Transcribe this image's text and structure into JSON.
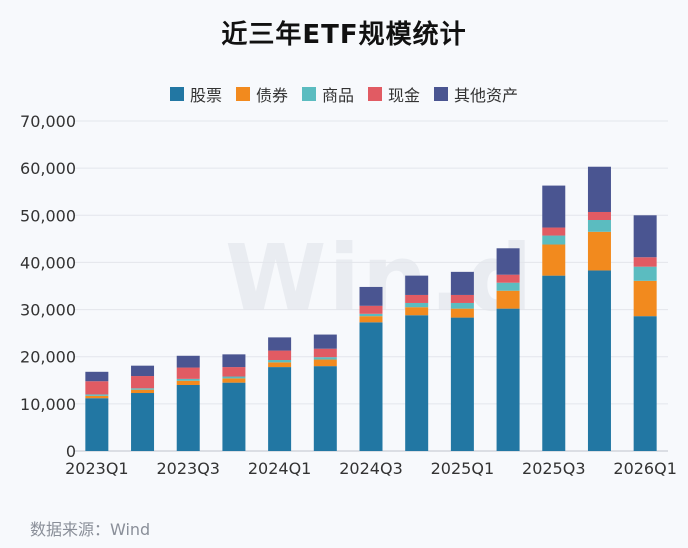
{
  "title": "近三年ETF规模统计",
  "watermark": "Win.d",
  "source": "数据来源：Wind",
  "legend": [
    {
      "label": "股票",
      "color": "#2277a3"
    },
    {
      "label": "债券",
      "color": "#f28a1e"
    },
    {
      "label": "商品",
      "color": "#5bbcc0"
    },
    {
      "label": "现金",
      "color": "#e15b63"
    },
    {
      "label": "其他资产",
      "color": "#4a5591"
    }
  ],
  "chart_data": {
    "type": "bar",
    "stacked": true,
    "categories": [
      "2023Q1",
      "2023Q2",
      "2023Q3",
      "2023Q4",
      "2024Q1",
      "2024Q2",
      "2024Q3",
      "2024Q4",
      "2025Q1",
      "2025Q2",
      "2025Q3",
      "2025Q4",
      "2026Q1"
    ],
    "tick_labels": [
      "2023Q1",
      "2023Q3",
      "2024Q1",
      "2024Q3",
      "2025Q1",
      "2025Q3",
      "2026Q1"
    ],
    "ylim": [
      0,
      70000
    ],
    "yticks": [
      0,
      10000,
      20000,
      30000,
      40000,
      50000,
      60000,
      70000
    ],
    "ytick_labels": [
      "0",
      "10,000",
      "20,000",
      "30,000",
      "40,000",
      "50,000",
      "60,000",
      "70,000"
    ],
    "grid": true,
    "legend_position": "top",
    "series": [
      {
        "name": "股票",
        "color": "#2277a3",
        "values": [
          11200,
          12300,
          14000,
          14500,
          17800,
          18000,
          27300,
          28800,
          28300,
          30200,
          37200,
          38300,
          28600
        ]
      },
      {
        "name": "债券",
        "color": "#f28a1e",
        "values": [
          500,
          700,
          900,
          900,
          1000,
          1400,
          1300,
          1700,
          1900,
          3800,
          6600,
          8200,
          7500
        ]
      },
      {
        "name": "商品",
        "color": "#5bbcc0",
        "values": [
          300,
          300,
          400,
          400,
          500,
          500,
          500,
          900,
          1200,
          1700,
          1900,
          2500,
          3000
        ]
      },
      {
        "name": "现金",
        "color": "#e15b63",
        "values": [
          2800,
          2600,
          2400,
          2000,
          2000,
          1800,
          1700,
          1700,
          1700,
          1700,
          1700,
          1700,
          2000
        ]
      },
      {
        "name": "其他资产",
        "color": "#4a5591",
        "values": [
          2000,
          2200,
          2500,
          2700,
          2800,
          3000,
          4000,
          4100,
          4900,
          5600,
          8900,
          9600,
          8900
        ]
      }
    ]
  }
}
